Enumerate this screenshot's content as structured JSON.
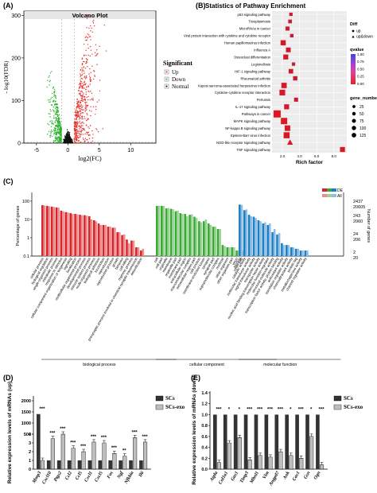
{
  "panels": {
    "A": {
      "label": "(A)",
      "chart_data": {
        "type": "scatter",
        "title": "Volcano Plot",
        "xlabel": "log2(FC)",
        "ylabel": "- log10(FDR)",
        "xlim": [
          -7,
          14
        ],
        "ylim": [
          0,
          310
        ],
        "xticks": [
          "-5",
          "0",
          "5",
          "10"
        ],
        "yticks": [
          "0",
          "100",
          "200",
          "300"
        ],
        "legend_title": "Significant",
        "legend": [
          "Up",
          "Down",
          "Normal"
        ],
        "colors": {
          "Up": "#e8302a",
          "Down": "#2bb02b",
          "Normal": "#111111"
        }
      }
    },
    "B": {
      "label": "(B)",
      "chart_data": {
        "type": "scatter",
        "title": "Statistics of Pathway Enrichment",
        "xlabel": "Rich factor",
        "xticks": [
          "2.0",
          "4.0",
          "6.0",
          "8.0"
        ],
        "xlim": [
          0.8,
          9.5
        ],
        "categories": [
          "p53 signaling pathway",
          "Toxoplasmosis",
          "MicroRNAs in cancer",
          "Viral protein interaction with cytokine and cytokine receptor",
          "Human papillomavirus infection",
          "Influenza A",
          "Osteoclast differentiation",
          "Legionellosis",
          "HIF-1 signaling pathway",
          "Rheumatoid arthritis",
          "Kaposi sarcoma-associated herpesvirus infection",
          "Cytokine-cytokine receptor interaction",
          "Pertussis",
          "IL-17 signaling pathway",
          "Pathways in cancer",
          "MAPK signaling pathway",
          "NF-kappa B signaling pathway",
          "Epstein-Barr virus infection",
          "NOD-like receptor signaling pathway",
          "TNF signaling pathway"
        ],
        "rich_factor": [
          3.0,
          2.9,
          2.6,
          3.1,
          2.1,
          2.7,
          2.4,
          3.3,
          3.0,
          3.5,
          2.2,
          2.0,
          3.6,
          2.5,
          1.4,
          2.2,
          2.6,
          2.5,
          2.9,
          9.0
        ],
        "gene_number": [
          10,
          15,
          20,
          12,
          45,
          35,
          40,
          10,
          30,
          25,
          50,
          60,
          20,
          40,
          110,
          80,
          55,
          70,
          65,
          40
        ],
        "qvalue": [
          0.05,
          0.06,
          0.04,
          0.08,
          0.03,
          0.05,
          0.04,
          0.07,
          0.05,
          0.06,
          0.03,
          0.02,
          0.05,
          0.04,
          0.01,
          0.02,
          0.03,
          0.03,
          0.02,
          0.01
        ],
        "diff_legend_title": "Diff",
        "diff_legend": [
          "up",
          "up&down"
        ],
        "qvalue_legend_title": "qvalue",
        "qvalue_ticks": [
          "1.00",
          "0.75",
          "0.50",
          "0.25",
          "0.00"
        ],
        "gene_legend_title": "gene_number",
        "gene_legend": [
          "25",
          "50",
          "75",
          "100",
          "125"
        ]
      }
    },
    "C": {
      "label": "(C)",
      "chart_data": {
        "type": "bar",
        "ylabel": "Percentage of genes",
        "ylabel_right": "Number of genes",
        "yticks_left": [
          "100",
          "10",
          "1",
          "0.1"
        ],
        "yticks_right_de": [
          "2437",
          "243",
          "24",
          "2"
        ],
        "yticks_right_all": [
          "20605",
          "2060",
          "206",
          "20"
        ],
        "legend": [
          "DE",
          "All"
        ],
        "groups": [
          {
            "name": "biological process",
            "color": "#d6262b",
            "categories": [
              "cellular process",
              "biological regulation",
              "single-organism process",
              "metabolic process",
              "response to stimulus",
              "cellular component organization or biogenesis",
              "signaling",
              "localization",
              "multicellular organismal process",
              "developmental process",
              "immune system process",
              "multi-organism process",
              "biological adhesion",
              "locomotion",
              "reproduction",
              "reproductive process",
              "growth",
              "behavior",
              "cell killing",
              "rhythmic process",
              "presynaptic process involved in chemical synaptic transmission",
              "detoxification"
            ],
            "de": [
              60,
              55,
              50,
              45,
              30,
              25,
              22,
              20,
              18,
              17,
              15,
              9,
              6,
              5,
              4,
              3.5,
              2,
              1.4,
              0.8,
              0.7,
              0.3,
              0.2
            ],
            "all": [
              58,
              52,
              48,
              44,
              28,
              24,
              20,
              19,
              17,
              16,
              10,
              8,
              5,
              5,
              4,
              3.6,
              2,
              1.5,
              0.5,
              0.7,
              0.3,
              0.25
            ]
          },
          {
            "name": "cellular component",
            "color": "#3aa935",
            "categories": [
              "cell",
              "cell part",
              "organelle",
              "membrane",
              "organelle part",
              "membrane part",
              "extracellular region",
              "macromolecular complex",
              "extracellular region part",
              "cell junction",
              "membrane-enclosed lumen",
              "synapse",
              "synapse part",
              "supramolecular complex",
              "nucleoid",
              "other organism",
              "other organism part",
              "virion",
              "virion part"
            ],
            "de": [
              55,
              55,
              40,
              38,
              28,
              22,
              20,
              18,
              14,
              8,
              8,
              6,
              4,
              3,
              0.4,
              0.3,
              0.3,
              0.2,
              0.2
            ],
            "all": [
              56,
              55,
              42,
              36,
              30,
              20,
              15,
              19,
              12,
              7,
              10,
              5,
              4,
              3,
              0.35,
              0.3,
              0.3,
              0.2,
              0.2
            ]
          },
          {
            "name": "molecular function",
            "color": "#1f7fc4",
            "categories": [
              "binding",
              "catalytic activity",
              "molecular transducer activity",
              "signal transducer activity",
              "transporter activity",
              "nucleic acid binding transcription factor activity",
              "molecular function regulator",
              "structural molecule activity",
              "transcription factor activity, protein binding",
              "antioxidant activity",
              "translation regulator activity",
              "chemoattractant activity",
              "protein tag",
              "metallochaperone activity",
              "channel regulator activity"
            ],
            "de": [
              65,
              32,
              18,
              14,
              9,
              6,
              5,
              2,
              1.5,
              0.5,
              0.4,
              0.3,
              0.25,
              0.2,
              0.2
            ],
            "all": [
              62,
              35,
              15,
              12,
              8,
              7,
              6,
              3,
              1.8,
              0.4,
              0.4,
              0.3,
              0.25,
              0.2,
              0.2
            ]
          }
        ]
      }
    },
    "D": {
      "label": "(D)",
      "chart_data": {
        "type": "bar",
        "ylabel": "Relative expression levels of mRNAs (up)",
        "yticks": [
          "0",
          "1",
          "2",
          "3",
          "4",
          "500",
          "1000",
          "1500",
          "2000"
        ],
        "categories": [
          "Mmp3",
          "Cxcl10",
          "Ptgs2",
          "Ccl2",
          "Ccl5",
          "Cxcl1",
          "Cxcl5",
          "Fos",
          "Ngf",
          "Nfkbia",
          "Il6"
        ],
        "series": [
          {
            "name": "SCs",
            "values": [
              1400,
              1,
              1,
              1,
              1,
              1,
              1,
              1,
              1,
              1,
              1
            ]
          },
          {
            "name": "SCs-exo",
            "values": [
              1.0,
              3.5,
              4.0,
              2.4,
              2.0,
              3.1,
              3.0,
              1.8,
              1.5,
              3.6,
              3.1
            ]
          }
        ],
        "significance": [
          "***",
          "***",
          "***",
          "***",
          "***",
          "***",
          "***",
          "***",
          "**",
          "***",
          "***"
        ]
      }
    },
    "E": {
      "label": "(E)",
      "chart_data": {
        "type": "bar",
        "ylabel": "Relative expression levels of mRNAs (down)",
        "yticks": [
          "0.0",
          "0.2",
          "0.4",
          "0.6",
          "0.8",
          "1.0",
          "1.2",
          "1.4"
        ],
        "ylim": [
          0,
          1.4
        ],
        "categories": [
          "Atpla",
          "Col1a1",
          "Gas1",
          "Timp3",
          "Mbnl1",
          "Vim",
          "Angptl7",
          "Ank",
          "Cav1",
          "Gsn",
          "Ogn"
        ],
        "series": [
          {
            "name": "SCs",
            "values": [
              1.0,
              1.0,
              1.0,
              1.0,
              1.0,
              1.0,
              1.0,
              1.0,
              1.0,
              1.0,
              1.0
            ]
          },
          {
            "name": "SCs-exo",
            "values": [
              0.12,
              0.48,
              0.58,
              0.17,
              0.25,
              0.22,
              0.32,
              0.25,
              0.2,
              0.6,
              0.08
            ]
          }
        ],
        "significance": [
          "***",
          "*",
          "*",
          "***",
          "***",
          "***",
          "***",
          "*",
          "***",
          "*",
          "***"
        ]
      }
    }
  }
}
